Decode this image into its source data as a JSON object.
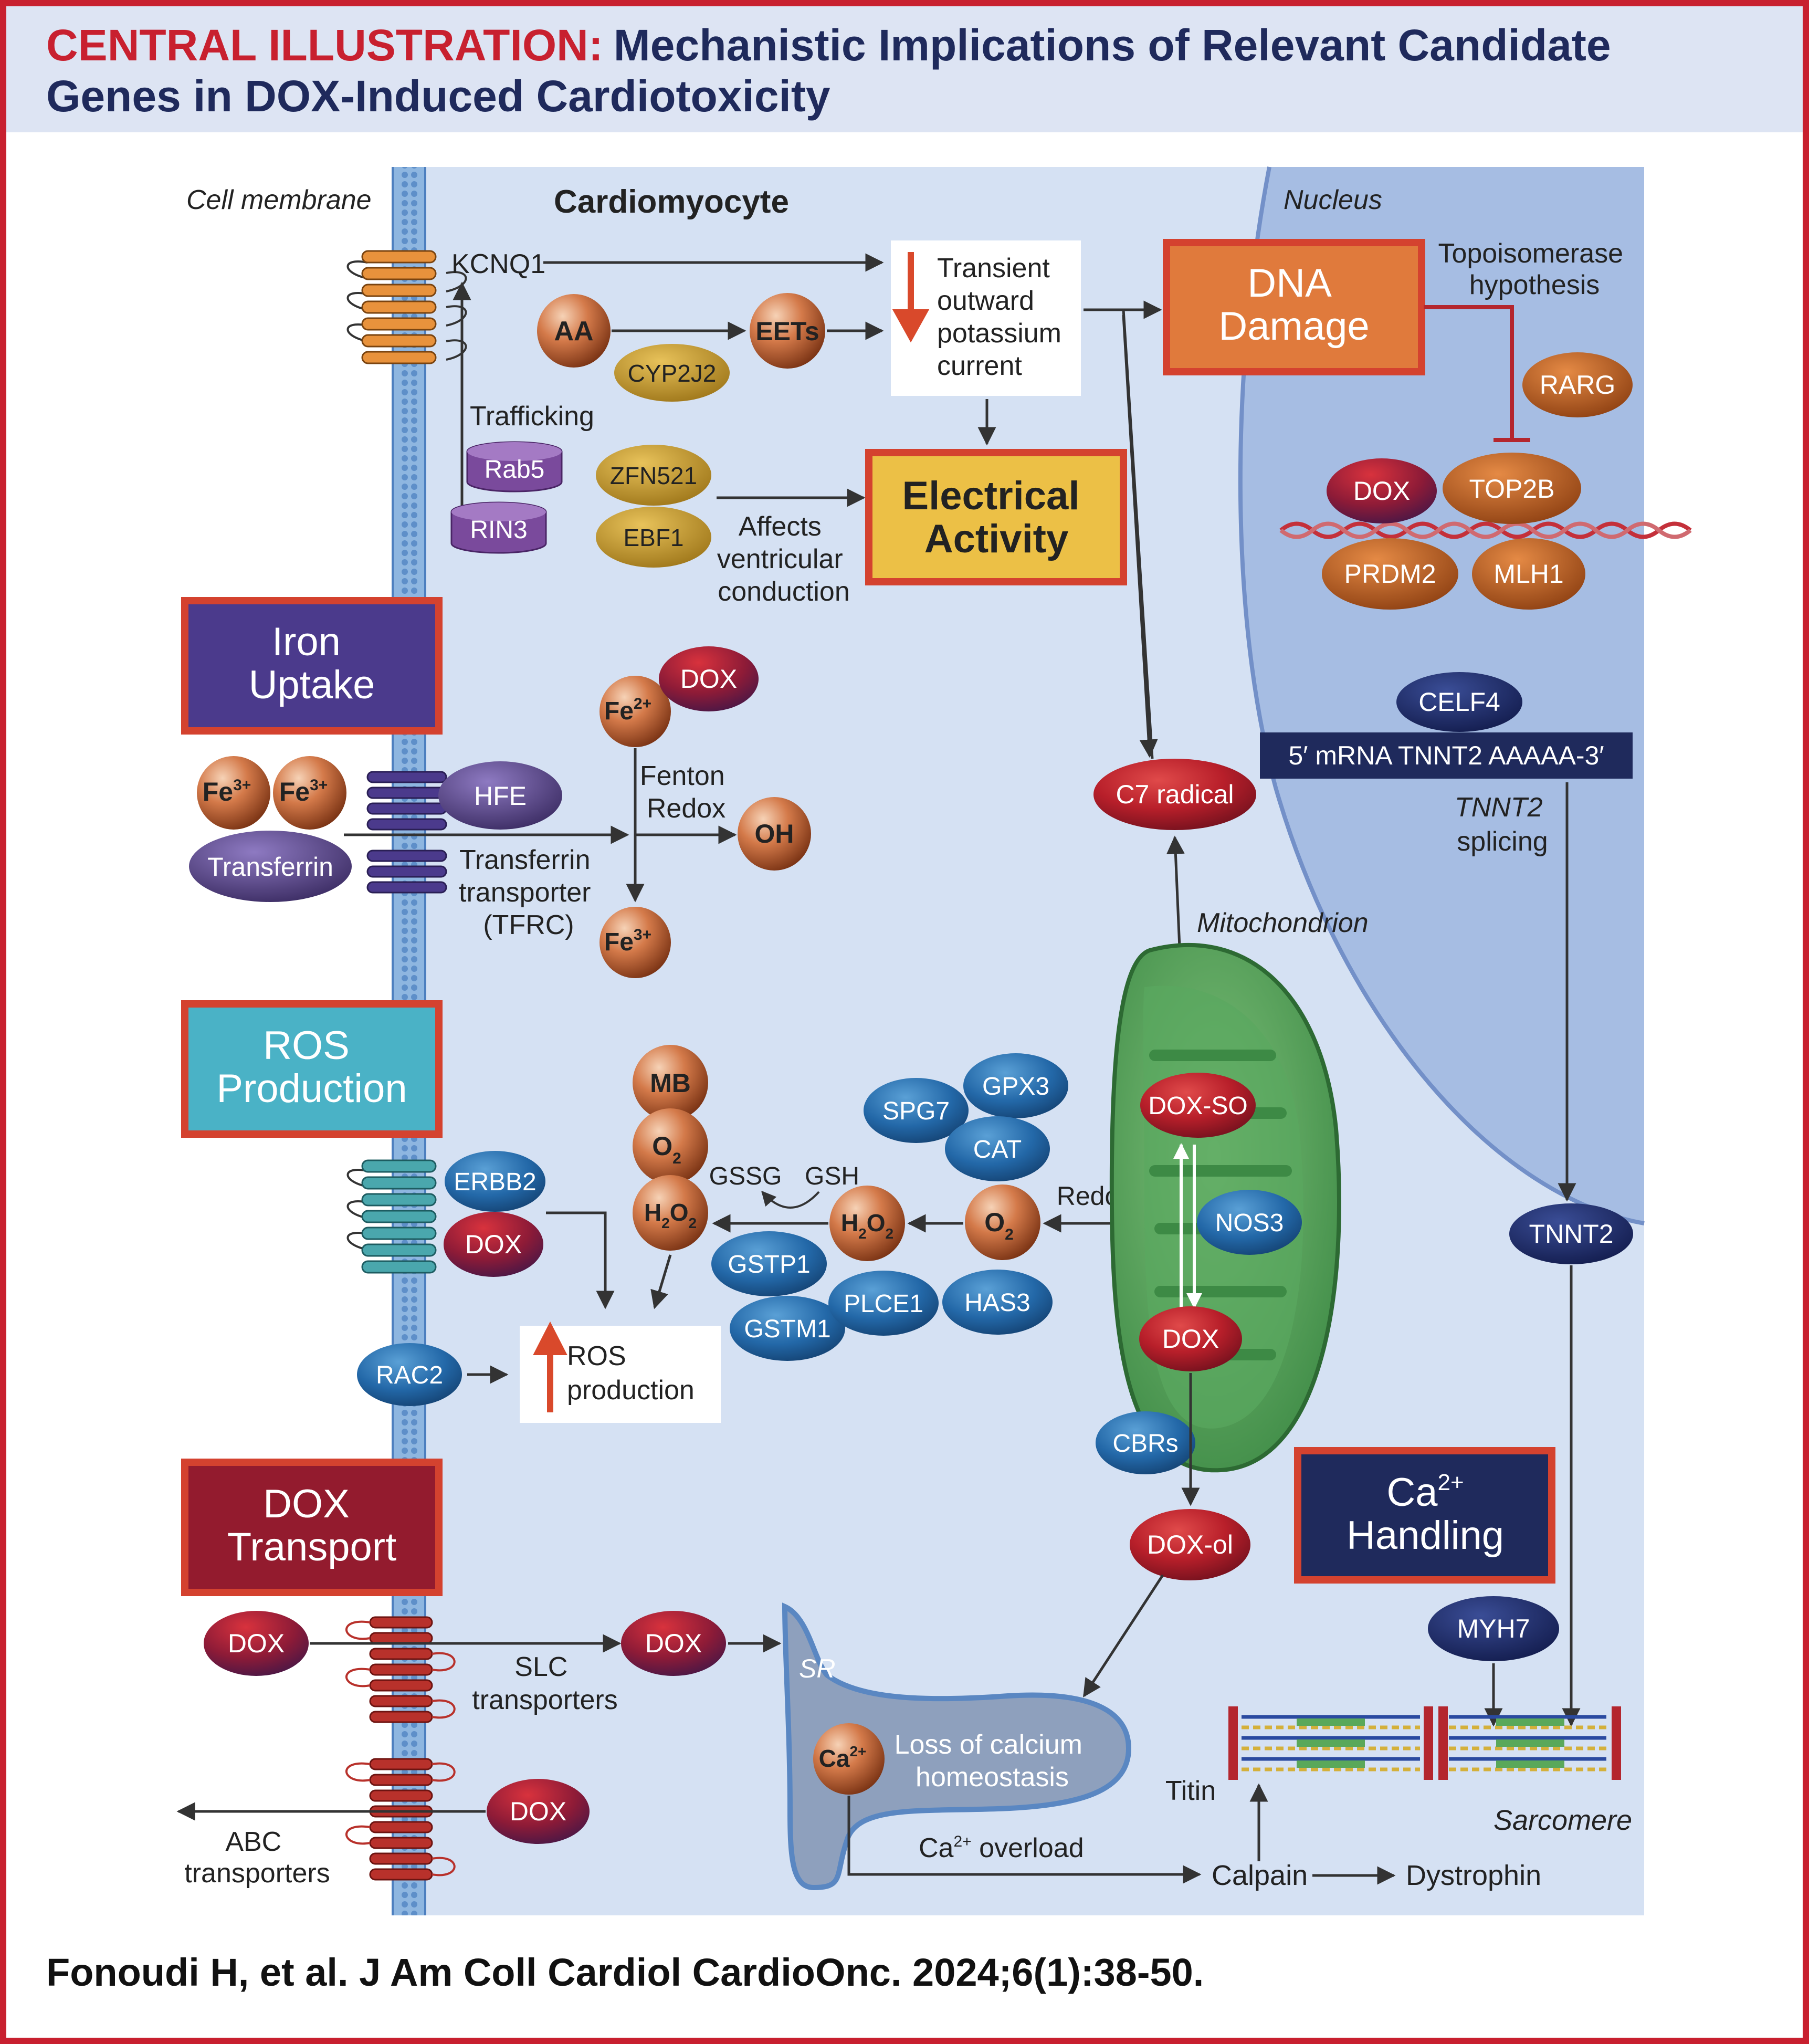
{
  "header": {
    "label": "CENTRAL ILLUSTRATION:",
    "title_line1": "Mechanistic Implications of Relevant Candidate",
    "title_line2": "Genes in DOX-Induced Cardiotoxicity"
  },
  "regions": {
    "cell_membrane": "Cell membrane",
    "cardiomyocyte": "Cardiomyocyte",
    "nucleus": "Nucleus",
    "mitochondrion": "Mitochondrion",
    "sr": "SR",
    "sarcomere": "Sarcomere"
  },
  "boxes": {
    "dna_damage": [
      "DNA",
      "Damage"
    ],
    "electrical_activity": [
      "Electrical",
      "Activity"
    ],
    "iron_uptake": [
      "Iron",
      "Uptake"
    ],
    "ros_production": [
      "ROS",
      "Production"
    ],
    "dox_transport": [
      "DOX",
      "Transport"
    ],
    "ca_handling_line1": "Ca",
    "ca_handling_line2": "Handling"
  },
  "molecules": {
    "kcnq1": "KCNQ1",
    "trafficking": "Trafficking",
    "rab5": "Rab5",
    "rin3": "RIN3",
    "aa": "AA",
    "cyp2j2": "CYP2J2",
    "eets": "EETs",
    "transient_current": [
      "Transient",
      "outward",
      "potassium",
      "current"
    ],
    "zfn521": "ZFN521",
    "ebf1": "EBF1",
    "affects_conduction": [
      "Affects",
      "ventricular",
      "conduction"
    ],
    "topoisomerase": [
      "Topoisomerase",
      "hypothesis"
    ],
    "rarg": "RARG",
    "dox": "DOX",
    "top2b": "TOP2B",
    "prdm2": "PRDM2",
    "mlh1": "MLH1",
    "celf4": "CELF4",
    "mrna": "5′ mRNA TNNT2 AAAAA-3′",
    "tnnt2_splicing": [
      "TNNT2",
      "splicing"
    ],
    "tnnt2": "TNNT2",
    "c7_radical": "C7 radical",
    "fe": "Fe",
    "ox2": "2+",
    "ox3": "3+",
    "fenton_redox": [
      "Fenton",
      "Redox"
    ],
    "oh": "OH",
    "hfe": "HFE",
    "transferrin": "Transferrin",
    "tfrc": [
      "Transferrin",
      "transporter",
      "(TFRC)"
    ],
    "mb": "MB",
    "o": "O",
    "h": "H",
    "sub2": "2",
    "gssg": "GSSG",
    "gsh": "GSH",
    "redox": "Redox",
    "spg7": "SPG7",
    "gpx3": "GPX3",
    "cat": "CAT",
    "gstp1": "GSTP1",
    "gstm1": "GSTM1",
    "plce1": "PLCE1",
    "has3": "HAS3",
    "erbb2": "ERBB2",
    "rac2": "RAC2",
    "ros_production": [
      "ROS",
      "production"
    ],
    "dox_so": "DOX-SO",
    "nos3": "NOS3",
    "cbrs": "CBRs",
    "dox_ol": "DOX-ol",
    "slc": [
      "SLC",
      "transporters"
    ],
    "abc": [
      "ABC",
      "transporters"
    ],
    "ca": "Ca",
    "loss_calcium": [
      "Loss of calcium",
      "homeostasis"
    ],
    "ca_overload": " overload",
    "calpain": "Calpain",
    "dystrophin": "Dystrophin",
    "titin": "Titin",
    "myh7": "MYH7"
  },
  "footer": {
    "citation": "Fonoudi H, et al. J Am Coll Cardiol CardioOnc. 2024;6(1):38-50."
  },
  "colors": {
    "brand_red": "#c8202f",
    "navy": "#1f2a5c",
    "cell_bg": "#d5e1f3",
    "nucleus_bg": "#a6bde3",
    "membrane": "#8eb6e0",
    "header_bg": "#dde4f3"
  }
}
